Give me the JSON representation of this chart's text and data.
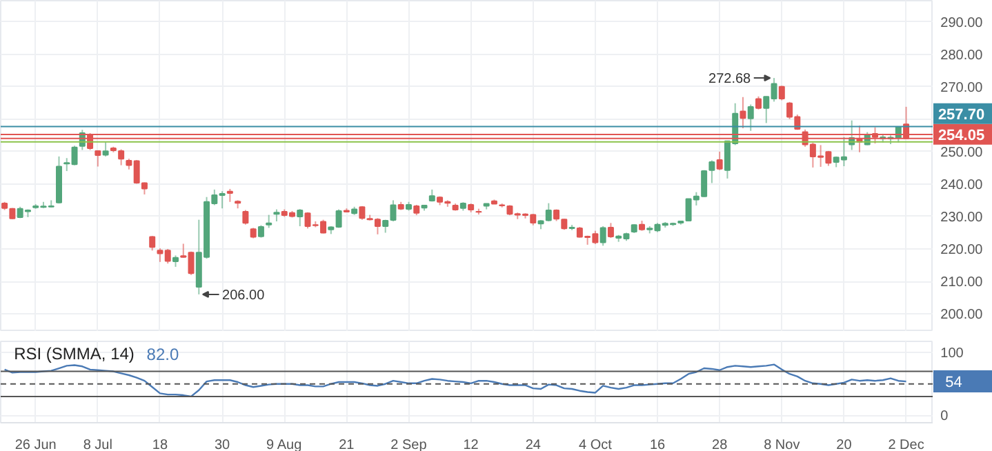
{
  "chart_data": [
    {
      "type": "candlestick",
      "categories": [
        null,
        null,
        null,
        null,
        null,
        null,
        null,
        null,
        null,
        null,
        null,
        null,
        null,
        null,
        null,
        null,
        null,
        null,
        null,
        null,
        null,
        null,
        null,
        null,
        null,
        null,
        null,
        null,
        null,
        null,
        null,
        null,
        null,
        null,
        null,
        null,
        null,
        null,
        null,
        null,
        null,
        null,
        null,
        null,
        null,
        null,
        null,
        null,
        null,
        null,
        null,
        null,
        null,
        null,
        null,
        null,
        null,
        null,
        null,
        null,
        null,
        null,
        null,
        null,
        null,
        null,
        null,
        null,
        null,
        null,
        null,
        null,
        null,
        null,
        null,
        null,
        null,
        null,
        null,
        null,
        null,
        null,
        null,
        null,
        null,
        null,
        null,
        null,
        null,
        null,
        null,
        null,
        null,
        null,
        null,
        null,
        null,
        null,
        null,
        null,
        null,
        null,
        null,
        null,
        null,
        null,
        null,
        null,
        null,
        null,
        null,
        null,
        null,
        null,
        null,
        null,
        null
      ],
      "ohlc": [
        [
          234.0,
          234.5,
          232.0,
          232.6
        ],
        [
          232.4,
          232.6,
          229.2,
          229.4
        ],
        [
          229.8,
          233.0,
          229.5,
          232.4
        ],
        [
          231.6,
          232.2,
          229.8,
          231.9
        ],
        [
          232.8,
          233.8,
          232.4,
          233.2
        ],
        [
          232.9,
          234.5,
          232.6,
          233.1
        ],
        [
          233.0,
          235.0,
          232.8,
          233.2
        ],
        [
          234.3,
          248.5,
          234.0,
          245.4
        ],
        [
          246.3,
          248.0,
          244.0,
          246.5
        ],
        [
          246.1,
          251.8,
          245.8,
          251.3
        ],
        [
          251.7,
          256.7,
          250.5,
          255.7
        ],
        [
          255.3,
          255.7,
          250.5,
          251.0
        ],
        [
          250.2,
          250.4,
          245.4,
          248.9
        ],
        [
          249.0,
          252.9,
          248.5,
          250.1
        ],
        [
          251.0,
          251.5,
          249.8,
          250.4
        ],
        [
          250.2,
          250.7,
          245.8,
          247.8
        ],
        [
          247.2,
          247.8,
          244.5,
          245.8
        ],
        [
          247.1,
          247.4,
          240.1,
          240.4
        ],
        [
          240.3,
          240.5,
          236.8,
          238.6
        ],
        [
          223.7,
          224.0,
          219.5,
          220.6
        ],
        [
          219.5,
          220.2,
          216.0,
          218.6
        ],
        [
          219.5,
          220.0,
          215.5,
          216.3
        ],
        [
          216.2,
          218.0,
          214.5,
          217.3
        ],
        [
          217.8,
          221.6,
          217.3,
          217.5
        ],
        [
          218.9,
          219.2,
          212.0,
          212.5
        ],
        [
          208.3,
          229.0,
          206.0,
          218.9
        ],
        [
          217.5,
          236.0,
          217.0,
          234.5
        ],
        [
          234.0,
          238.3,
          233.5,
          236.6
        ],
        [
          236.6,
          237.8,
          232.5,
          237.0
        ],
        [
          237.7,
          238.5,
          234.5,
          237.2
        ],
        [
          234.6,
          235.0,
          232.5,
          234.2
        ],
        [
          231.5,
          232.0,
          227.5,
          228.0
        ],
        [
          226.1,
          226.5,
          223.3,
          223.7
        ],
        [
          223.9,
          227.3,
          223.5,
          226.8
        ],
        [
          227.5,
          230.5,
          226.5,
          227.9
        ],
        [
          230.8,
          232.2,
          228.5,
          231.2
        ],
        [
          231.5,
          232.2,
          229.9,
          230.4
        ],
        [
          231.1,
          231.7,
          229.7,
          230.1
        ],
        [
          230.0,
          232.3,
          227.0,
          231.9
        ],
        [
          231.0,
          231.3,
          226.3,
          227.0
        ],
        [
          227.4,
          228.5,
          226.7,
          227.3
        ],
        [
          228.4,
          229.0,
          224.8,
          225.0
        ],
        [
          226.0,
          227.0,
          224.6,
          226.7
        ],
        [
          226.8,
          232.2,
          226.5,
          231.7
        ],
        [
          231.8,
          232.5,
          231.3,
          231.5
        ],
        [
          231.0,
          233.0,
          230.5,
          232.2
        ],
        [
          232.9,
          233.2,
          229.0,
          229.5
        ],
        [
          229.3,
          230.5,
          228.8,
          229.1
        ],
        [
          229.1,
          229.5,
          224.5,
          227.0
        ],
        [
          227.0,
          229.0,
          225.0,
          228.7
        ],
        [
          228.9,
          235.0,
          228.5,
          233.5
        ],
        [
          233.6,
          234.5,
          232.0,
          232.4
        ],
        [
          232.3,
          234.5,
          231.8,
          233.6
        ],
        [
          233.2,
          233.6,
          230.4,
          231.1
        ],
        [
          232.7,
          233.6,
          231.8,
          233.4
        ],
        [
          234.9,
          238.3,
          234.6,
          236.3
        ],
        [
          235.9,
          236.2,
          233.5,
          234.5
        ],
        [
          234.5,
          235.0,
          233.0,
          234.2
        ],
        [
          233.4,
          234.0,
          231.8,
          232.1
        ],
        [
          232.6,
          234.4,
          231.8,
          234.0
        ],
        [
          233.6,
          234.0,
          231.3,
          232.1
        ],
        [
          231.5,
          232.4,
          230.6,
          231.4
        ],
        [
          233.3,
          234.0,
          232.2,
          233.9
        ],
        [
          234.7,
          235.2,
          233.8,
          233.9
        ],
        [
          233.5,
          234.0,
          232.8,
          233.4
        ],
        [
          233.2,
          233.5,
          230.4,
          230.8
        ],
        [
          230.8,
          231.2,
          229.2,
          230.5
        ],
        [
          230.7,
          231.0,
          229.4,
          230.4
        ],
        [
          230.5,
          230.8,
          227.3,
          228.1
        ],
        [
          227.8,
          228.9,
          226.1,
          228.6
        ],
        [
          228.8,
          234.1,
          228.5,
          231.9
        ],
        [
          231.9,
          232.2,
          228.6,
          229.3
        ],
        [
          229.1,
          229.3,
          225.9,
          226.3
        ],
        [
          226.4,
          227.4,
          225.8,
          226.6
        ],
        [
          226.4,
          226.8,
          223.5,
          223.7
        ],
        [
          223.8,
          224.1,
          221.3,
          223.6
        ],
        [
          224.6,
          225.6,
          221.5,
          222.0
        ],
        [
          222.0,
          227.0,
          221.0,
          226.5
        ],
        [
          226.6,
          228.0,
          223.4,
          223.8
        ],
        [
          223.4,
          224.3,
          222.2,
          223.9
        ],
        [
          223.2,
          225.0,
          222.5,
          224.6
        ],
        [
          225.3,
          227.6,
          224.9,
          227.4
        ],
        [
          227.5,
          228.7,
          225.6,
          226.0
        ],
        [
          226.0,
          227.0,
          224.8,
          226.3
        ],
        [
          225.7,
          228.0,
          225.2,
          227.5
        ],
        [
          227.4,
          228.3,
          226.6,
          227.8
        ],
        [
          227.6,
          228.1,
          227.1,
          227.8
        ],
        [
          228.1,
          228.7,
          227.5,
          228.5
        ],
        [
          228.7,
          235.4,
          228.5,
          235.4
        ],
        [
          235.2,
          237.5,
          233.4,
          236.2
        ],
        [
          236.2,
          244.3,
          236.0,
          244.0
        ],
        [
          244.3,
          247.3,
          240.3,
          246.8
        ],
        [
          247.4,
          250.0,
          244.3,
          244.7
        ],
        [
          244.3,
          253.2,
          241.7,
          253.2
        ],
        [
          252.5,
          264.9,
          252.0,
          261.7
        ],
        [
          262.4,
          266.8,
          257.2,
          260.3
        ],
        [
          260.2,
          264.5,
          256.4,
          263.8
        ],
        [
          266.2,
          267.0,
          263.0,
          263.4
        ],
        [
          263.4,
          267.0,
          258.8,
          266.9
        ],
        [
          266.3,
          272.68,
          265.4,
          270.9
        ],
        [
          270.0,
          270.3,
          265.8,
          266.3
        ],
        [
          264.9,
          265.3,
          260.0,
          260.7
        ],
        [
          260.7,
          261.4,
          256.7,
          257.0
        ],
        [
          256.0,
          256.8,
          251.5,
          252.2
        ],
        [
          252.2,
          252.7,
          245.1,
          248.5
        ],
        [
          248.6,
          252.0,
          245.3,
          248.3
        ],
        [
          249.9,
          250.2,
          245.6,
          246.5
        ],
        [
          246.8,
          248.5,
          245.2,
          248.2
        ],
        [
          247.5,
          254.5,
          245.5,
          248.3
        ],
        [
          252.2,
          259.6,
          250.5,
          254.2
        ],
        [
          254.0,
          258.0,
          249.8,
          253.0
        ],
        [
          252.2,
          256.0,
          252.0,
          255.3
        ],
        [
          255.5,
          257.5,
          252.5,
          254.5
        ],
        [
          254.0,
          255.5,
          252.8,
          254.4
        ],
        [
          254.0,
          255.0,
          252.3,
          254.3
        ],
        [
          254.2,
          257.7,
          252.8,
          257.6
        ],
        [
          258.4,
          263.8,
          254.0,
          254.05
        ]
      ],
      "colors": [
        "#e05552",
        "#e05552",
        "#53a67b",
        "#53a67b",
        "#53a67b",
        "#53a67b",
        "#53a67b",
        "#53a67b",
        "#53a67b",
        "#53a67b",
        "#53a67b",
        "#e05552",
        "#e05552",
        "#53a67b",
        "#e05552",
        "#e05552",
        "#e05552",
        "#e05552",
        "#e05552",
        "#e05552",
        "#e05552",
        "#e05552",
        "#53a67b",
        "#e05552",
        "#e05552",
        "#53a67b",
        "#53a67b",
        "#53a67b",
        "#53a67b",
        "#e05552",
        "#e05552",
        "#e05552",
        "#e05552",
        "#53a67b",
        "#53a67b",
        "#53a67b",
        "#e05552",
        "#e05552",
        "#53a67b",
        "#e05552",
        "#e05552",
        "#e05552",
        "#53a67b",
        "#53a67b",
        "#e05552",
        "#53a67b",
        "#e05552",
        "#e05552",
        "#e05552",
        "#53a67b",
        "#53a67b",
        "#e05552",
        "#53a67b",
        "#e05552",
        "#53a67b",
        "#53a67b",
        "#e05552",
        "#e05552",
        "#e05552",
        "#53a67b",
        "#e05552",
        "#e05552",
        "#53a67b",
        "#e05552",
        "#e05552",
        "#e05552",
        "#e05552",
        "#e05552",
        "#e05552",
        "#53a67b",
        "#53a67b",
        "#e05552",
        "#e05552",
        "#53a67b",
        "#e05552",
        "#e05552",
        "#e05552",
        "#53a67b",
        "#e05552",
        "#53a67b",
        "#53a67b",
        "#53a67b",
        "#e05552",
        "#53a67b",
        "#53a67b",
        "#53a67b",
        "#53a67b",
        "#53a67b",
        "#53a67b",
        "#53a67b",
        "#53a67b",
        "#53a67b",
        "#e05552",
        "#53a67b",
        "#53a67b",
        "#e05552",
        "#53a67b",
        "#e05552",
        "#53a67b",
        "#53a67b",
        "#e05552",
        "#e05552",
        "#e05552",
        "#e05552",
        "#e05552",
        "#e05552",
        "#e05552",
        "#53a67b",
        "#53a67b",
        "#53a67b",
        "#e05552",
        "#53a67b",
        "#e05552",
        "#53a67b",
        "#53a67b",
        "#53a67b",
        "#e05552"
      ],
      "ylim": [
        194.5,
        296.5
      ],
      "yticks": [
        {
          "value": 200,
          "label": "200.00"
        },
        {
          "value": 210,
          "label": "210.00"
        },
        {
          "value": 220,
          "label": "220.00"
        },
        {
          "value": 230,
          "label": "230.00"
        },
        {
          "value": 240,
          "label": "240.00"
        },
        {
          "value": 250,
          "label": "250.00"
        },
        {
          "value": 260,
          "label": null
        },
        {
          "value": 270,
          "label": "270.00"
        },
        {
          "value": 280,
          "label": "280.00"
        },
        {
          "value": 290,
          "label": "290.00"
        }
      ],
      "grid": true,
      "tick_labels": "y",
      "ref_lines": [
        {
          "axis": "y",
          "value": 255.3,
          "color": "#e05552"
        },
        {
          "axis": "y",
          "value": 253.0,
          "color": "#8bc34a"
        },
        {
          "axis": "y",
          "value": 257.7,
          "label": "257.70",
          "color": "#3b8ea5"
        },
        {
          "axis": "y",
          "value": 254.05,
          "label": "254.05",
          "color": "#e05552"
        }
      ],
      "annotations": [
        "272.68",
        "206.00"
      ]
    },
    {
      "type": "line",
      "title": "RSI (SMMA, 14)",
      "categories": [
        null,
        null,
        null,
        null,
        "26 Jun",
        null,
        null,
        null,
        null,
        null,
        null,
        null,
        "8 Jul",
        null,
        null,
        null,
        null,
        null,
        null,
        null,
        "18",
        null,
        null,
        null,
        null,
        null,
        null,
        null,
        "30",
        null,
        null,
        null,
        null,
        null,
        null,
        null,
        "9 Aug",
        null,
        null,
        null,
        null,
        null,
        null,
        null,
        "21",
        null,
        null,
        null,
        null,
        null,
        null,
        null,
        "2 Sep",
        null,
        null,
        null,
        null,
        null,
        null,
        null,
        "12",
        null,
        null,
        null,
        null,
        null,
        null,
        null,
        "24",
        null,
        null,
        null,
        null,
        null,
        null,
        null,
        "4 Oct",
        null,
        null,
        null,
        null,
        null,
        null,
        null,
        "16",
        null,
        null,
        null,
        null,
        null,
        null,
        null,
        "28",
        null,
        null,
        null,
        null,
        null,
        null,
        null,
        "8 Nov",
        null,
        null,
        null,
        null,
        null,
        null,
        null,
        "20",
        null,
        null,
        null,
        null,
        null,
        null,
        null,
        "2 Dec"
      ],
      "series": [
        {
          "color": "#4a7ab5",
          "values": [
            73,
            68,
            69,
            69,
            69,
            70,
            71,
            75,
            79,
            80,
            78,
            73,
            72,
            71,
            70,
            67,
            64,
            60,
            55,
            45,
            35,
            33,
            33,
            32,
            30,
            40,
            54,
            56,
            56,
            56,
            53,
            48,
            45,
            47,
            49,
            50,
            50,
            50,
            48,
            48,
            46,
            46,
            50,
            53,
            53,
            53,
            51,
            48,
            47,
            50,
            55,
            53,
            51,
            51,
            55,
            58,
            57,
            55,
            54,
            53,
            51,
            55,
            55,
            53,
            50,
            48,
            48,
            48,
            43,
            42,
            49,
            48,
            43,
            42,
            39,
            37,
            36,
            47,
            44,
            42,
            44,
            48,
            48,
            49,
            50,
            51,
            51,
            58,
            66,
            69,
            75,
            74,
            72,
            77,
            79,
            78,
            77,
            78,
            79,
            81,
            73,
            66,
            62,
            55,
            51,
            50,
            48,
            50,
            52,
            57,
            55,
            56,
            55,
            56,
            59,
            55,
            54
          ]
        }
      ],
      "ylim": [
        -12,
        118
      ],
      "yticks": [
        0,
        100
      ],
      "grid": true,
      "ref_lines": [
        {
          "axis": "y",
          "value": 70,
          "color": "#555555"
        },
        {
          "axis": "y",
          "value": 30,
          "color": "#555555"
        },
        {
          "axis": "y",
          "value": 50,
          "color": "#555555",
          "line_style": "dashed"
        }
      ],
      "annotations": [
        "82.0",
        "54"
      ]
    }
  ]
}
